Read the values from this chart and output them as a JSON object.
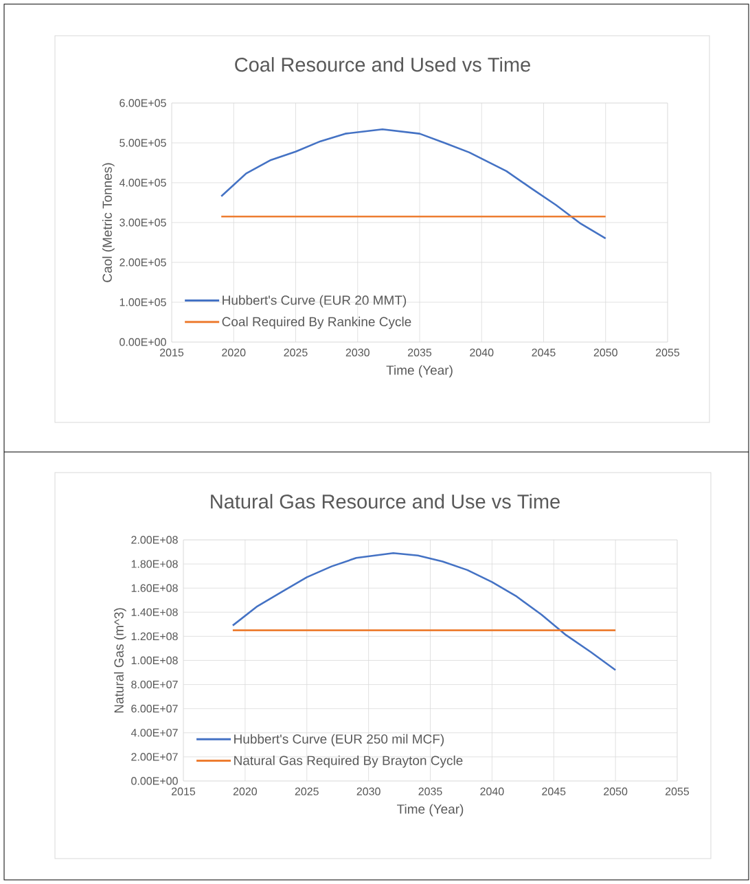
{
  "chart_data": [
    {
      "type": "line",
      "title": "Coal Resource and Used vs Time",
      "xlabel": "Time (Year)",
      "ylabel": "Caol (Metric Tonnes)",
      "series": [
        {
          "name": "Hubbert's Curve (EUR 20 MMT)",
          "color": "#4472c4",
          "x": [
            2019,
            2021,
            2023,
            2025,
            2027,
            2029,
            2032,
            2035,
            2037,
            2039,
            2042,
            2044,
            2046,
            2048,
            2050
          ],
          "values": [
            366000,
            423000,
            457000,
            478000,
            504000,
            523000,
            534000,
            523000,
            500000,
            476000,
            429000,
            386000,
            344000,
            297000,
            260000
          ]
        },
        {
          "name": "Coal Required By Rankine Cycle",
          "color": "#ed7d31",
          "x": [
            2019,
            2050
          ],
          "values": [
            315000,
            315000
          ]
        }
      ],
      "xlim": [
        2015,
        2055
      ],
      "xticks": [
        2015,
        2020,
        2025,
        2030,
        2035,
        2040,
        2045,
        2050,
        2055
      ],
      "ylim": [
        0,
        600000
      ],
      "yticks": [
        {
          "value": 0,
          "label": "0.00E+00"
        },
        {
          "value": 100000,
          "label": "1.00E+05"
        },
        {
          "value": 200000,
          "label": "2.00E+05"
        },
        {
          "value": 300000,
          "label": "3.00E+05"
        },
        {
          "value": 400000,
          "label": "4.00E+05"
        },
        {
          "value": 500000,
          "label": "5.00E+05"
        },
        {
          "value": 600000,
          "label": "6.00E+05"
        }
      ],
      "grid": true,
      "legend": "bottom left",
      "marker": "none",
      "line_style": "solid"
    },
    {
      "type": "line",
      "title": "Natural Gas Resource and Use vs Time",
      "xlabel": "Time (Year)",
      "ylabel": "Natural Gas (m^3)",
      "series": [
        {
          "name": "Hubbert's Curve (EUR 250 mil MCF)",
          "color": "#4472c4",
          "x": [
            2019,
            2021,
            2023,
            2025,
            2027,
            2029,
            2032,
            2034,
            2036,
            2038,
            2040,
            2042,
            2044,
            2046,
            2048,
            2050
          ],
          "values": [
            129000000,
            145000000,
            157000000,
            169000000,
            178000000,
            185000000,
            189000000,
            187000000,
            182000000,
            175000000,
            165000000,
            153000000,
            138000000,
            121000000,
            107000000,
            92000000
          ]
        },
        {
          "name": "Natural Gas Required By Brayton Cycle",
          "color": "#ed7d31",
          "x": [
            2019,
            2050
          ],
          "values": [
            125000000,
            125000000
          ]
        }
      ],
      "xlim": [
        2015,
        2055
      ],
      "xticks": [
        2015,
        2020,
        2025,
        2030,
        2035,
        2040,
        2045,
        2050,
        2055
      ],
      "ylim": [
        0,
        200000000
      ],
      "yticks": [
        {
          "value": 0,
          "label": "0.00E+00"
        },
        {
          "value": 20000000,
          "label": "2.00E+07"
        },
        {
          "value": 40000000,
          "label": "4.00E+07"
        },
        {
          "value": 60000000,
          "label": "6.00E+07"
        },
        {
          "value": 80000000,
          "label": "8.00E+07"
        },
        {
          "value": 100000000,
          "label": "1.00E+08"
        },
        {
          "value": 120000000,
          "label": "1.20E+08"
        },
        {
          "value": 140000000,
          "label": "1.40E+08"
        },
        {
          "value": 160000000,
          "label": "1.60E+08"
        },
        {
          "value": 180000000,
          "label": "1.80E+08"
        },
        {
          "value": 200000000,
          "label": "2.00E+08"
        }
      ],
      "grid": true,
      "legend": "bottom left",
      "marker": "none",
      "line_style": "solid"
    }
  ]
}
